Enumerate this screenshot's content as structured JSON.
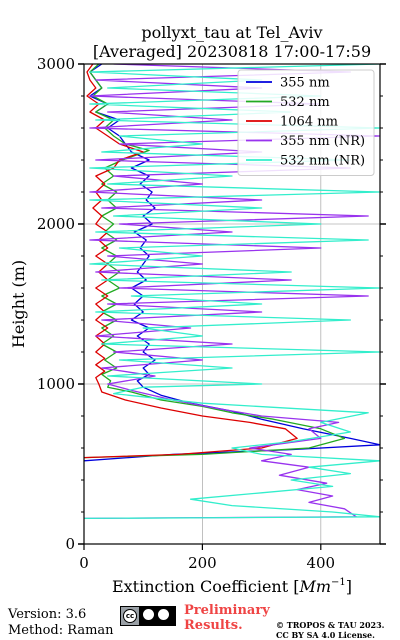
{
  "title_line1": "pollyxt_tau at Tel_Aviv",
  "title_line2": "[Averaged] 20230818 17:00-17:59",
  "footer": {
    "version": "Version: 3.6",
    "method": "Method: Raman",
    "preliminary_line1": "Preliminary",
    "preliminary_line2": "Results.",
    "copyright_line1": "© TROPOS & TAU 2023.",
    "copyright_line2": "CC BY SA 4.0 License.",
    "license_icon": "cc-by-sa-icon"
  },
  "chart_data": {
    "type": "line",
    "title": "pollyxt_tau at Tel_Aviv [Averaged] 20230818 17:00-17:59",
    "xlabel": "Extinction Coefficient [Mm⁻¹]",
    "ylabel": "Height (m)",
    "xlim": [
      0,
      500
    ],
    "ylim": [
      0,
      3000
    ],
    "xticks": [
      0,
      200,
      400
    ],
    "yticks": [
      0,
      1000,
      2000,
      3000
    ],
    "grid": true,
    "legend_position": "top-right",
    "series": [
      {
        "name": "355 nm",
        "color": "#0000dd",
        "points": [
          [
            0,
            520
          ],
          [
            150,
            560
          ],
          [
            350,
            590
          ],
          [
            500,
            620
          ],
          [
            450,
            660
          ],
          [
            370,
            720
          ],
          [
            300,
            780
          ],
          [
            250,
            830
          ],
          [
            180,
            880
          ],
          [
            130,
            930
          ],
          [
            100,
            980
          ],
          [
            90,
            1020
          ],
          [
            110,
            1060
          ],
          [
            100,
            1100
          ],
          [
            120,
            1150
          ],
          [
            100,
            1200
          ],
          [
            110,
            1250
          ],
          [
            90,
            1300
          ],
          [
            110,
            1350
          ],
          [
            80,
            1400
          ],
          [
            100,
            1450
          ],
          [
            85,
            1500
          ],
          [
            100,
            1550
          ],
          [
            80,
            1600
          ],
          [
            105,
            1650
          ],
          [
            90,
            1700
          ],
          [
            100,
            1750
          ],
          [
            110,
            1800
          ],
          [
            95,
            1850
          ],
          [
            105,
            1900
          ],
          [
            85,
            1950
          ],
          [
            115,
            2000
          ],
          [
            100,
            2050
          ],
          [
            120,
            2100
          ],
          [
            105,
            2150
          ],
          [
            115,
            2200
          ],
          [
            95,
            2250
          ],
          [
            110,
            2300
          ],
          [
            80,
            2350
          ],
          [
            110,
            2400
          ],
          [
            80,
            2450
          ],
          [
            70,
            2500
          ],
          [
            60,
            2550
          ],
          [
            40,
            2600
          ],
          [
            60,
            2650
          ],
          [
            20,
            2700
          ],
          [
            40,
            2750
          ],
          [
            10,
            2800
          ],
          [
            30,
            2850
          ],
          [
            20,
            2900
          ],
          [
            10,
            2950
          ],
          [
            30,
            3000
          ]
        ]
      },
      {
        "name": "532 nm",
        "color": "#22aa22",
        "points": [
          [
            0,
            540
          ],
          [
            200,
            560
          ],
          [
            380,
            600
          ],
          [
            440,
            660
          ],
          [
            400,
            720
          ],
          [
            320,
            780
          ],
          [
            250,
            820
          ],
          [
            200,
            860
          ],
          [
            130,
            900
          ],
          [
            80,
            950
          ],
          [
            40,
            980
          ],
          [
            45,
            1020
          ],
          [
            30,
            1060
          ],
          [
            55,
            1100
          ],
          [
            35,
            1150
          ],
          [
            55,
            1200
          ],
          [
            30,
            1250
          ],
          [
            50,
            1300
          ],
          [
            30,
            1350
          ],
          [
            55,
            1400
          ],
          [
            30,
            1450
          ],
          [
            55,
            1500
          ],
          [
            30,
            1550
          ],
          [
            60,
            1600
          ],
          [
            40,
            1650
          ],
          [
            60,
            1700
          ],
          [
            40,
            1750
          ],
          [
            55,
            1800
          ],
          [
            30,
            1850
          ],
          [
            55,
            1900
          ],
          [
            35,
            1950
          ],
          [
            50,
            2000
          ],
          [
            30,
            2050
          ],
          [
            55,
            2100
          ],
          [
            40,
            2150
          ],
          [
            55,
            2200
          ],
          [
            30,
            2250
          ],
          [
            50,
            2300
          ],
          [
            35,
            2350
          ],
          [
            65,
            2400
          ],
          [
            110,
            2460
          ],
          [
            70,
            2500
          ],
          [
            50,
            2550
          ],
          [
            35,
            2600
          ],
          [
            50,
            2650
          ],
          [
            20,
            2700
          ],
          [
            40,
            2750
          ],
          [
            15,
            2800
          ],
          [
            30,
            2850
          ],
          [
            20,
            2900
          ],
          [
            10,
            2950
          ],
          [
            25,
            3000
          ]
        ]
      },
      {
        "name": "1064 nm",
        "color": "#dd0000",
        "points": [
          [
            0,
            540
          ],
          [
            160,
            560
          ],
          [
            300,
            600
          ],
          [
            360,
            660
          ],
          [
            340,
            720
          ],
          [
            280,
            760
          ],
          [
            200,
            800
          ],
          [
            130,
            850
          ],
          [
            70,
            900
          ],
          [
            30,
            950
          ],
          [
            25,
            1000
          ],
          [
            20,
            1040
          ],
          [
            35,
            1080
          ],
          [
            20,
            1120
          ],
          [
            35,
            1160
          ],
          [
            20,
            1200
          ],
          [
            35,
            1250
          ],
          [
            20,
            1300
          ],
          [
            40,
            1350
          ],
          [
            20,
            1400
          ],
          [
            35,
            1450
          ],
          [
            20,
            1500
          ],
          [
            40,
            1550
          ],
          [
            20,
            1600
          ],
          [
            40,
            1650
          ],
          [
            25,
            1700
          ],
          [
            40,
            1750
          ],
          [
            20,
            1800
          ],
          [
            40,
            1850
          ],
          [
            25,
            1900
          ],
          [
            40,
            1950
          ],
          [
            20,
            2000
          ],
          [
            30,
            2050
          ],
          [
            15,
            2100
          ],
          [
            30,
            2150
          ],
          [
            20,
            2200
          ],
          [
            35,
            2250
          ],
          [
            20,
            2300
          ],
          [
            50,
            2350
          ],
          [
            60,
            2400
          ],
          [
            100,
            2450
          ],
          [
            60,
            2500
          ],
          [
            40,
            2550
          ],
          [
            20,
            2600
          ],
          [
            35,
            2650
          ],
          [
            10,
            2700
          ],
          [
            25,
            2750
          ],
          [
            5,
            2800
          ],
          [
            20,
            2850
          ],
          [
            10,
            2900
          ],
          [
            5,
            2950
          ],
          [
            15,
            3000
          ]
        ]
      },
      {
        "name": "355 nm (NR)",
        "color": "#9933ee",
        "points": [
          [
            0,
            160
          ],
          [
            460,
            170
          ],
          [
            440,
            220
          ],
          [
            380,
            260
          ],
          [
            420,
            300
          ],
          [
            360,
            340
          ],
          [
            410,
            380
          ],
          [
            330,
            430
          ],
          [
            380,
            480
          ],
          [
            300,
            520
          ],
          [
            350,
            560
          ],
          [
            280,
            600
          ],
          [
            400,
            660
          ],
          [
            380,
            720
          ],
          [
            430,
            760
          ],
          [
            300,
            800
          ],
          [
            220,
            850
          ],
          [
            150,
            900
          ],
          [
            80,
            960
          ],
          [
            40,
            1000
          ],
          [
            120,
            1050
          ],
          [
            30,
            1100
          ],
          [
            200,
            1150
          ],
          [
            50,
            1200
          ],
          [
            250,
            1250
          ],
          [
            20,
            1300
          ],
          [
            180,
            1350
          ],
          [
            30,
            1400
          ],
          [
            300,
            1450
          ],
          [
            40,
            1500
          ],
          [
            480,
            1550
          ],
          [
            60,
            1600
          ],
          [
            350,
            1650
          ],
          [
            20,
            1700
          ],
          [
            200,
            1750
          ],
          [
            40,
            1800
          ],
          [
            400,
            1850
          ],
          [
            10,
            1900
          ],
          [
            250,
            1950
          ],
          [
            60,
            2000
          ],
          [
            480,
            2050
          ],
          [
            30,
            2100
          ],
          [
            300,
            2150
          ],
          [
            10,
            2200
          ],
          [
            200,
            2250
          ],
          [
            50,
            2300
          ],
          [
            450,
            2350
          ],
          [
            20,
            2400
          ],
          [
            300,
            2450
          ],
          [
            60,
            2500
          ],
          [
            500,
            2550
          ],
          [
            10,
            2600
          ],
          [
            250,
            2650
          ],
          [
            40,
            2700
          ],
          [
            400,
            2750
          ],
          [
            10,
            2800
          ],
          [
            300,
            2850
          ],
          [
            20,
            2900
          ],
          [
            450,
            2950
          ],
          [
            50,
            3000
          ]
        ]
      },
      {
        "name": "532 nm (NR)",
        "color": "#33eecc",
        "points": [
          [
            0,
            160
          ],
          [
            500,
            170
          ],
          [
            420,
            200
          ],
          [
            250,
            240
          ],
          [
            180,
            280
          ],
          [
            300,
            320
          ],
          [
            420,
            360
          ],
          [
            350,
            400
          ],
          [
            450,
            440
          ],
          [
            380,
            480
          ],
          [
            500,
            520
          ],
          [
            300,
            560
          ],
          [
            250,
            600
          ],
          [
            350,
            640
          ],
          [
            450,
            700
          ],
          [
            400,
            760
          ],
          [
            480,
            820
          ],
          [
            200,
            880
          ],
          [
            50,
            940
          ],
          [
            100,
            980
          ],
          [
            300,
            1000
          ],
          [
            40,
            1050
          ],
          [
            250,
            1100
          ],
          [
            60,
            1150
          ],
          [
            500,
            1200
          ],
          [
            30,
            1250
          ],
          [
            200,
            1300
          ],
          [
            100,
            1350
          ],
          [
            450,
            1400
          ],
          [
            20,
            1450
          ],
          [
            300,
            1500
          ],
          [
            80,
            1550
          ],
          [
            500,
            1600
          ],
          [
            30,
            1650
          ],
          [
            350,
            1700
          ],
          [
            10,
            1750
          ],
          [
            200,
            1800
          ],
          [
            60,
            1850
          ],
          [
            480,
            1900
          ],
          [
            20,
            1950
          ],
          [
            400,
            2000
          ],
          [
            50,
            2050
          ],
          [
            300,
            2100
          ],
          [
            10,
            2150
          ],
          [
            500,
            2200
          ],
          [
            40,
            2250
          ],
          [
            250,
            2300
          ],
          [
            10,
            2350
          ],
          [
            450,
            2400
          ],
          [
            30,
            2450
          ],
          [
            200,
            2500
          ],
          [
            60,
            2550
          ],
          [
            500,
            2600
          ],
          [
            20,
            2650
          ],
          [
            350,
            2700
          ],
          [
            10,
            2750
          ],
          [
            400,
            2800
          ],
          [
            40,
            2850
          ],
          [
            300,
            2900
          ],
          [
            10,
            2950
          ],
          [
            500,
            3000
          ]
        ]
      }
    ]
  }
}
